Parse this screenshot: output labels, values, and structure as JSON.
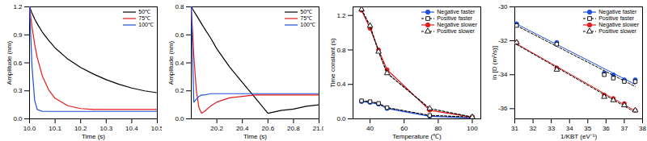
{
  "chart_data": [
    {
      "type": "line",
      "x_label": "Time (s)",
      "y_label": "Amplitude (nm)",
      "xlim": [
        10.0,
        10.5
      ],
      "xticks": [
        {
          "value": 10,
          "label": "10.0"
        },
        10.1,
        10.2,
        10.3,
        10.4,
        10.5
      ],
      "ylim": [
        0,
        1.2
      ],
      "yticks": [
        {
          "value": 0,
          "label": "0.0"
        },
        0.3,
        0.6,
        0.9,
        1.2
      ],
      "legend": "top-right",
      "x": [
        10.0,
        10.01,
        10.02,
        10.03,
        10.05,
        10.075,
        10.1,
        10.15,
        10.2,
        10.25,
        10.3,
        10.35,
        10.4,
        10.45,
        10.5
      ],
      "series": [
        {
          "name": "50℃",
          "color": "#000000",
          "line_style": "solid",
          "values": [
            1.2,
            1.13,
            1.07,
            1.02,
            0.93,
            0.84,
            0.76,
            0.64,
            0.55,
            0.48,
            0.42,
            0.37,
            0.33,
            0.3,
            0.28
          ]
        },
        {
          "name": "75℃",
          "color": "#e41a1c",
          "line_style": "solid",
          "values": [
            1.2,
            0.98,
            0.8,
            0.66,
            0.46,
            0.31,
            0.22,
            0.14,
            0.11,
            0.1,
            0.1,
            0.1,
            0.1,
            0.1,
            0.1
          ]
        },
        {
          "name": "100℃",
          "color": "#1f4fe0",
          "line_style": "solid",
          "values": [
            1.2,
            0.55,
            0.2,
            0.1,
            0.08,
            0.08,
            0.08,
            0.08,
            0.08,
            0.08,
            0.08,
            0.08,
            0.08,
            0.08,
            0.08
          ]
        }
      ]
    },
    {
      "type": "line",
      "x_label": "Time (s)",
      "y_label": "Amplitude (nm)",
      "xlim": [
        20.0,
        21.0
      ],
      "xticks": [
        20.2,
        20.4,
        20.6,
        20.8,
        {
          "value": 21,
          "label": "21.0"
        }
      ],
      "ylim": [
        0,
        0.8
      ],
      "yticks": [
        {
          "value": 0,
          "label": "0.0"
        },
        0.2,
        0.4,
        0.6,
        0.8
      ],
      "legend": "top-right",
      "x": [
        20.0,
        20.02,
        20.04,
        20.06,
        20.08,
        20.1,
        20.15,
        20.2,
        20.3,
        20.4,
        20.5,
        20.6,
        20.7,
        20.8,
        20.9,
        21.0
      ],
      "series": [
        {
          "name": "50℃",
          "color": "#000000",
          "line_style": "solid",
          "values": [
            0.8,
            0.77,
            0.74,
            0.71,
            0.68,
            0.65,
            0.58,
            0.5,
            0.37,
            0.26,
            0.15,
            0.04,
            0.06,
            0.07,
            0.09,
            0.1
          ]
        },
        {
          "name": "75℃",
          "color": "#e41a1c",
          "line_style": "solid",
          "values": [
            0.8,
            0.45,
            0.2,
            0.08,
            0.04,
            0.05,
            0.09,
            0.12,
            0.15,
            0.16,
            0.17,
            0.17,
            0.17,
            0.17,
            0.17,
            0.17
          ]
        },
        {
          "name": "100℃",
          "color": "#1f4fe0",
          "line_style": "solid",
          "values": [
            0.8,
            0.12,
            0.14,
            0.16,
            0.17,
            0.17,
            0.18,
            0.18,
            0.18,
            0.18,
            0.18,
            0.18,
            0.18,
            0.18,
            0.18,
            0.18
          ]
        }
      ]
    },
    {
      "type": "line",
      "x_label": "Temperature (℃)",
      "y_label": "Time constant (s)",
      "xlim": [
        30,
        105
      ],
      "xticks": [
        40,
        60,
        80,
        100
      ],
      "ylim": [
        0,
        1.3
      ],
      "yticks": [
        {
          "value": 0,
          "label": "0.0"
        },
        0.4,
        0.8,
        1.2
      ],
      "legend": "top-right",
      "x": [
        35,
        40,
        45,
        50,
        75,
        100
      ],
      "series": [
        {
          "name": "Negative faster",
          "color": "#1f4fe0",
          "marker": "circle",
          "line_style": "solid",
          "values": [
            0.2,
            0.19,
            0.17,
            0.12,
            0.03,
            0.01
          ]
        },
        {
          "name": "Positive faster",
          "color": "#000000",
          "marker": "open_square",
          "line_style": "dashed",
          "values": [
            0.21,
            0.2,
            0.18,
            0.13,
            0.04,
            0.02
          ]
        },
        {
          "name": "Negative slower",
          "color": "#e41a1c",
          "marker": "circle",
          "line_style": "solid",
          "values": [
            1.26,
            1.05,
            0.8,
            0.57,
            0.1,
            0.02
          ]
        },
        {
          "name": "Positive slower",
          "color": "#000000",
          "marker": "open_triangle",
          "line_style": "dashed",
          "values": [
            1.27,
            1.08,
            0.78,
            0.53,
            0.12,
            0.02
          ]
        }
      ]
    },
    {
      "type": "scatter",
      "x_label": "1/KBT (eV⁻¹)",
      "y_label": "ln [D (m²/s)]",
      "xlim": [
        31,
        38
      ],
      "xticks": [
        31,
        32,
        33,
        34,
        35,
        36,
        37,
        38
      ],
      "ylim": [
        -36.6,
        -30
      ],
      "yticks": [
        -36,
        -34,
        -32,
        -30
      ],
      "legend": "top-right",
      "x": [
        31.1,
        33.3,
        35.9,
        36.4,
        37.0,
        37.6
      ],
      "series": [
        {
          "name": "Negative faster",
          "color": "#1f4fe0",
          "marker": "circle",
          "line_style": "solid",
          "values": [
            -31.0,
            -32.1,
            -33.9,
            -34.0,
            -34.3,
            -34.3
          ]
        },
        {
          "name": "Positive faster",
          "color": "#000000",
          "marker": "open_square",
          "line_style": "dashed",
          "values": [
            -31.1,
            -32.2,
            -34.0,
            -34.2,
            -34.4,
            -34.4
          ]
        },
        {
          "name": "Negative slower",
          "color": "#e41a1c",
          "marker": "circle",
          "line_style": "solid",
          "values": [
            -32.1,
            -33.6,
            -35.2,
            -35.4,
            -35.7,
            -36.1
          ]
        },
        {
          "name": "Positive slower",
          "color": "#000000",
          "marker": "open_triangle",
          "line_style": "dashed",
          "values": [
            -32.1,
            -33.7,
            -35.3,
            -35.5,
            -35.8,
            -36.1
          ]
        }
      ]
    }
  ]
}
